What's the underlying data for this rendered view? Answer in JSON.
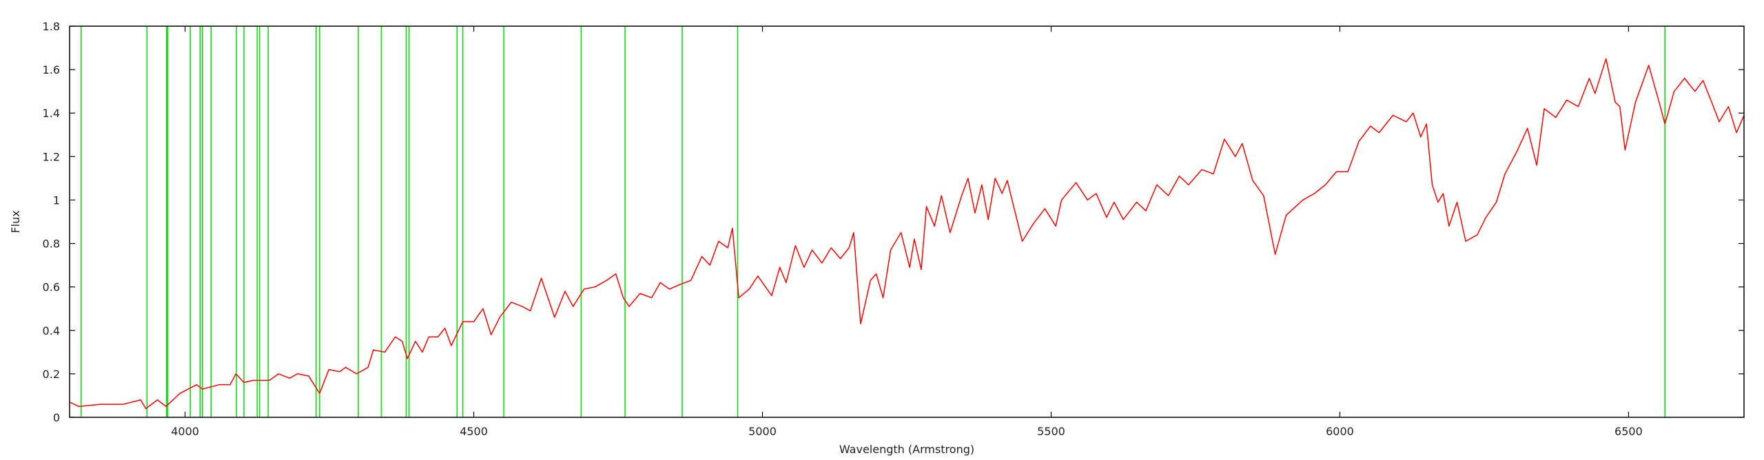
{
  "chart_data": {
    "type": "line",
    "x_label": "Wavelength (Armstrong)",
    "y_label": "Flux",
    "color": "#ff0000",
    "x": [
      3800,
      3816,
      3854,
      3893,
      3923,
      3932,
      3952,
      3967,
      3991,
      4020,
      4030,
      4059,
      4078,
      4088,
      4102,
      4117,
      4146,
      4162,
      4181,
      4195,
      4214,
      4233,
      4249,
      4268,
      4278,
      4297,
      4317,
      4326,
      4346,
      4364,
      4376,
      4385,
      4399,
      4411,
      4422,
      4438,
      4450,
      4461,
      4481,
      4500,
      4516,
      4530,
      4545,
      4565,
      4584,
      4598,
      4617,
      4640,
      4658,
      4672,
      4691,
      4710,
      4730,
      4746,
      4759,
      4769,
      4788,
      4808,
      4823,
      4839,
      4856,
      4876,
      4895,
      4909,
      4924,
      4940,
      4948,
      4959,
      4977,
      4992,
      5016,
      5030,
      5041,
      5057,
      5072,
      5086,
      5103,
      5119,
      5135,
      5150,
      5158,
      5170,
      5187,
      5197,
      5209,
      5222,
      5240,
      5255,
      5263,
      5275,
      5284,
      5298,
      5310,
      5325,
      5345,
      5356,
      5368,
      5380,
      5391,
      5403,
      5415,
      5424,
      5450,
      5469,
      5489,
      5508,
      5518,
      5543,
      5563,
      5578,
      5596,
      5609,
      5625,
      5648,
      5664,
      5683,
      5703,
      5722,
      5738,
      5761,
      5781,
      5800,
      5819,
      5831,
      5849,
      5868,
      5888,
      5907,
      5936,
      5956,
      5975,
      5994,
      6014,
      6033,
      6053,
      6068,
      6092,
      6115,
      6127,
      6140,
      6150,
      6160,
      6170,
      6179,
      6189,
      6203,
      6218,
      6238,
      6253,
      6271,
      6286,
      6306,
      6325,
      6341,
      6354,
      6374,
      6393,
      6413,
      6432,
      6442,
      6461,
      6477,
      6485,
      6494,
      6512,
      6535,
      6553,
      6563,
      6579,
      6597,
      6615,
      6629,
      6644,
      6657,
      6673,
      6687,
      6700
    ],
    "values": [
      0.07,
      0.05,
      0.06,
      0.06,
      0.08,
      0.04,
      0.08,
      0.05,
      0.11,
      0.15,
      0.13,
      0.15,
      0.15,
      0.2,
      0.16,
      0.17,
      0.17,
      0.2,
      0.18,
      0.2,
      0.19,
      0.11,
      0.22,
      0.21,
      0.23,
      0.2,
      0.23,
      0.31,
      0.3,
      0.37,
      0.35,
      0.27,
      0.35,
      0.3,
      0.37,
      0.37,
      0.41,
      0.33,
      0.44,
      0.44,
      0.5,
      0.38,
      0.46,
      0.53,
      0.51,
      0.49,
      0.64,
      0.46,
      0.58,
      0.51,
      0.59,
      0.6,
      0.63,
      0.66,
      0.55,
      0.51,
      0.57,
      0.55,
      0.62,
      0.59,
      0.61,
      0.63,
      0.74,
      0.7,
      0.81,
      0.78,
      0.87,
      0.55,
      0.59,
      0.65,
      0.56,
      0.69,
      0.62,
      0.79,
      0.69,
      0.77,
      0.71,
      0.78,
      0.73,
      0.78,
      0.85,
      0.43,
      0.63,
      0.66,
      0.55,
      0.77,
      0.85,
      0.69,
      0.82,
      0.68,
      0.97,
      0.88,
      1.02,
      0.85,
      1.02,
      1.1,
      0.94,
      1.07,
      0.91,
      1.1,
      1.03,
      1.09,
      0.81,
      0.89,
      0.96,
      0.88,
      1.0,
      1.08,
      1.0,
      1.03,
      0.92,
      0.99,
      0.91,
      0.99,
      0.95,
      1.07,
      1.02,
      1.11,
      1.07,
      1.14,
      1.12,
      1.28,
      1.2,
      1.26,
      1.09,
      1.02,
      0.75,
      0.93,
      1.0,
      1.03,
      1.07,
      1.13,
      1.13,
      1.27,
      1.34,
      1.31,
      1.39,
      1.36,
      1.4,
      1.29,
      1.35,
      1.07,
      0.99,
      1.03,
      0.88,
      0.99,
      0.81,
      0.84,
      0.92,
      0.99,
      1.12,
      1.22,
      1.33,
      1.16,
      1.42,
      1.38,
      1.46,
      1.43,
      1.56,
      1.49,
      1.65,
      1.45,
      1.43,
      1.23,
      1.45,
      1.62,
      1.45,
      1.35,
      1.5,
      1.56,
      1.5,
      1.55,
      1.45,
      1.36,
      1.43,
      1.31,
      1.39
    ],
    "lines": {
      "color": "#00dd00",
      "x": [
        3820,
        3934,
        3968,
        3970,
        4009,
        4026,
        4030,
        4045,
        4089,
        4102,
        4125,
        4129,
        4144,
        4227,
        4233,
        4300,
        4340,
        4383,
        4388,
        4471,
        4481,
        4552,
        4686,
        4762,
        4861,
        4957,
        6563
      ]
    },
    "xlim": [
      3800,
      6700
    ],
    "ylim": [
      0,
      1.8
    ],
    "xticks": [
      4000,
      4500,
      5000,
      5500,
      6000,
      6500
    ],
    "yticks": [
      0,
      0.2,
      0.4,
      0.6,
      0.8,
      1,
      1.2,
      1.4,
      1.6,
      1.8
    ]
  }
}
